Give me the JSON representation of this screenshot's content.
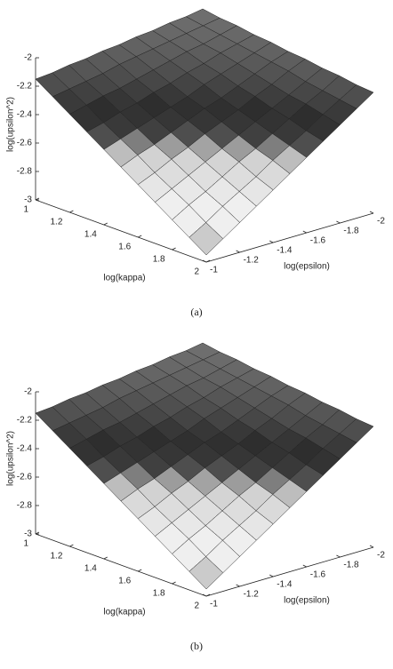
{
  "chart_data": [
    {
      "type": "surface",
      "caption": "(a)",
      "zlabel": "log(upsilon^2)",
      "xlabel": "log(kappa)",
      "ylabel": "log(epsilon)",
      "x": [
        1,
        1.1,
        1.2,
        1.3,
        1.4,
        1.5,
        1.6,
        1.7,
        1.8,
        1.9,
        2
      ],
      "y": [
        -2,
        -1.9,
        -1.8,
        -1.7,
        -1.6,
        -1.5,
        -1.4,
        -1.3,
        -1.2,
        -1.1,
        -1
      ],
      "z": [
        [
          -2.0,
          -2.02,
          -2.03,
          -2.05,
          -2.06,
          -2.08,
          -2.09,
          -2.11,
          -2.12,
          -2.14,
          -2.15
        ],
        [
          -2.02,
          -2.04,
          -2.06,
          -2.08,
          -2.1,
          -2.12,
          -2.14,
          -2.17,
          -2.19,
          -2.21,
          -2.23
        ],
        [
          -2.03,
          -2.06,
          -2.09,
          -2.11,
          -2.14,
          -2.17,
          -2.2,
          -2.23,
          -2.25,
          -2.28,
          -2.31
        ],
        [
          -2.05,
          -2.08,
          -2.11,
          -2.15,
          -2.18,
          -2.22,
          -2.25,
          -2.29,
          -2.32,
          -2.36,
          -2.39
        ],
        [
          -2.06,
          -2.1,
          -2.14,
          -2.18,
          -2.22,
          -2.27,
          -2.31,
          -2.35,
          -2.39,
          -2.43,
          -2.47
        ],
        [
          -2.08,
          -2.12,
          -2.17,
          -2.22,
          -2.27,
          -2.31,
          -2.36,
          -2.41,
          -2.46,
          -2.5,
          -2.55
        ],
        [
          -2.09,
          -2.14,
          -2.2,
          -2.25,
          -2.31,
          -2.36,
          -2.41,
          -2.47,
          -2.52,
          -2.58,
          -2.63
        ],
        [
          -2.11,
          -2.17,
          -2.23,
          -2.29,
          -2.35,
          -2.41,
          -2.47,
          -2.53,
          -2.59,
          -2.65,
          -2.71
        ],
        [
          -2.12,
          -2.19,
          -2.25,
          -2.32,
          -2.39,
          -2.46,
          -2.52,
          -2.59,
          -2.66,
          -2.72,
          -2.79
        ],
        [
          -2.14,
          -2.21,
          -2.28,
          -2.36,
          -2.43,
          -2.5,
          -2.58,
          -2.65,
          -2.72,
          -2.8,
          -2.87
        ],
        [
          -2.15,
          -2.23,
          -2.31,
          -2.39,
          -2.47,
          -2.55,
          -2.63,
          -2.71,
          -2.79,
          -2.87,
          -2.95
        ]
      ],
      "xlim": [
        1,
        2
      ],
      "ylim": [
        -1,
        -2
      ],
      "zlim": [
        -3,
        -2
      ],
      "xticks": [
        1,
        1.2,
        1.4,
        1.6,
        1.8,
        2
      ],
      "yticks": [
        -1,
        -1.2,
        -1.4,
        -1.6,
        -1.8,
        -2
      ],
      "zticks": [
        -3,
        -2.8,
        -2.6,
        -2.4,
        -2.2,
        -2
      ],
      "colormap": [
        "#8a8a8a",
        "#bdbdbd",
        "#efefef",
        "#efefef",
        "#e0e0e0",
        "#cfcfcf",
        "#3c3c3c",
        "#2e2e2e",
        "#4a4a4a",
        "#606060",
        "#727272"
      ],
      "edge_color": "#222222"
    },
    {
      "type": "surface",
      "caption": "(b)",
      "zlabel": "log(upsilon^2)",
      "xlabel": "log(kappa)",
      "ylabel": "log(epsilon)",
      "x": [
        1,
        1.1,
        1.2,
        1.3,
        1.4,
        1.5,
        1.6,
        1.7,
        1.8,
        1.9,
        2
      ],
      "y": [
        -2,
        -1.9,
        -1.8,
        -1.7,
        -1.6,
        -1.5,
        -1.4,
        -1.3,
        -1.2,
        -1.1,
        -1
      ],
      "z": [
        [
          -2.0,
          -2.02,
          -2.03,
          -2.05,
          -2.06,
          -2.08,
          -2.09,
          -2.11,
          -2.12,
          -2.14,
          -2.15
        ],
        [
          -2.02,
          -2.04,
          -2.06,
          -2.08,
          -2.1,
          -2.12,
          -2.14,
          -2.17,
          -2.19,
          -2.21,
          -2.23
        ],
        [
          -2.03,
          -2.06,
          -2.09,
          -2.11,
          -2.14,
          -2.17,
          -2.2,
          -2.23,
          -2.25,
          -2.28,
          -2.31
        ],
        [
          -2.05,
          -2.08,
          -2.11,
          -2.15,
          -2.18,
          -2.22,
          -2.25,
          -2.29,
          -2.32,
          -2.36,
          -2.39
        ],
        [
          -2.06,
          -2.1,
          -2.14,
          -2.18,
          -2.22,
          -2.27,
          -2.31,
          -2.35,
          -2.39,
          -2.43,
          -2.47
        ],
        [
          -2.08,
          -2.12,
          -2.17,
          -2.22,
          -2.27,
          -2.31,
          -2.36,
          -2.41,
          -2.46,
          -2.5,
          -2.55
        ],
        [
          -2.09,
          -2.14,
          -2.2,
          -2.25,
          -2.31,
          -2.36,
          -2.41,
          -2.47,
          -2.52,
          -2.58,
          -2.63
        ],
        [
          -2.11,
          -2.17,
          -2.23,
          -2.29,
          -2.35,
          -2.41,
          -2.47,
          -2.53,
          -2.59,
          -2.65,
          -2.71
        ],
        [
          -2.12,
          -2.19,
          -2.25,
          -2.32,
          -2.39,
          -2.46,
          -2.52,
          -2.59,
          -2.66,
          -2.72,
          -2.79
        ],
        [
          -2.14,
          -2.21,
          -2.28,
          -2.36,
          -2.43,
          -2.5,
          -2.58,
          -2.65,
          -2.72,
          -2.8,
          -2.87
        ],
        [
          -2.15,
          -2.23,
          -2.31,
          -2.39,
          -2.47,
          -2.55,
          -2.63,
          -2.71,
          -2.79,
          -2.87,
          -2.95
        ]
      ],
      "xlim": [
        1,
        2
      ],
      "ylim": [
        -1,
        -2
      ],
      "zlim": [
        -3,
        -2
      ],
      "xticks": [
        1,
        1.2,
        1.4,
        1.6,
        1.8,
        2
      ],
      "yticks": [
        -1,
        -1.2,
        -1.4,
        -1.6,
        -1.8,
        -2
      ],
      "zticks": [
        -3,
        -2.8,
        -2.6,
        -2.4,
        -2.2,
        -2
      ],
      "colormap": [
        "#8a8a8a",
        "#bdbdbd",
        "#efefef",
        "#efefef",
        "#e0e0e0",
        "#cfcfcf",
        "#3c3c3c",
        "#2e2e2e",
        "#4a4a4a",
        "#606060",
        "#727272"
      ],
      "edge_color": "#222222"
    }
  ]
}
